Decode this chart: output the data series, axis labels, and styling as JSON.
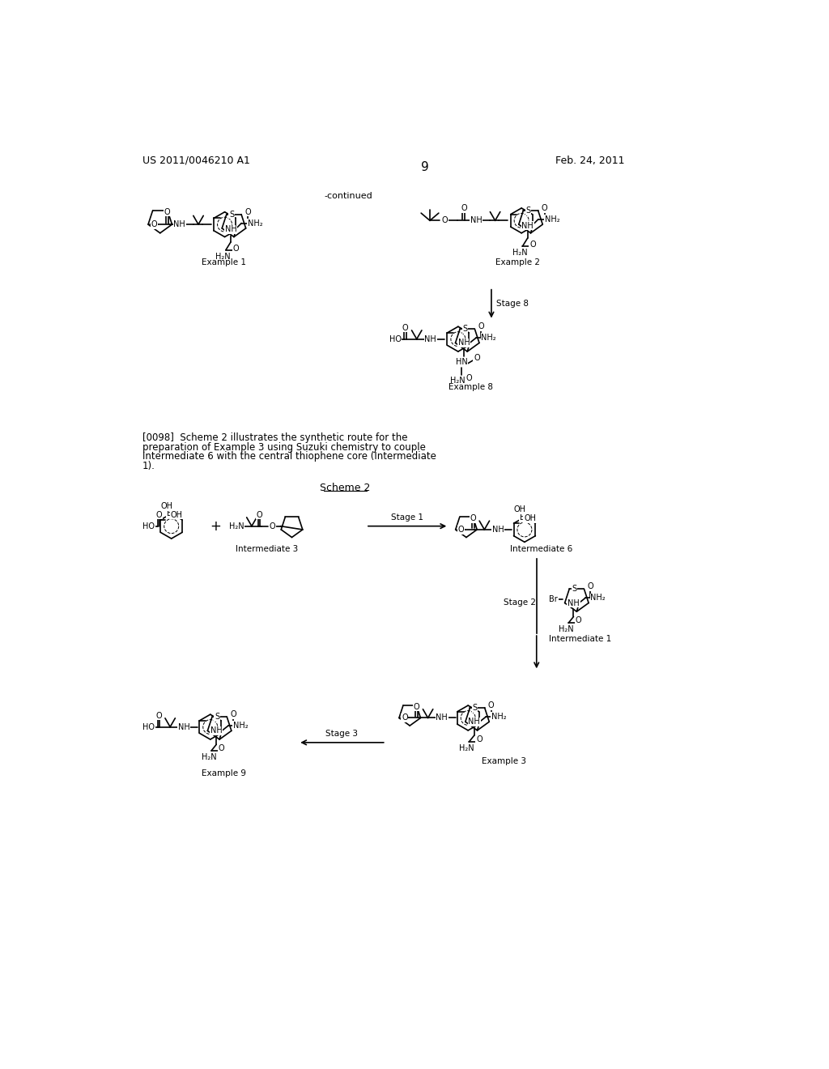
{
  "background_color": "#ffffff",
  "page_number": "9",
  "header_left": "US 2011/0046210 A1",
  "header_right": "Feb. 24, 2011",
  "continued_label": "-continued",
  "figsize": [
    10.24,
    13.2
  ],
  "dpi": 100,
  "paragraph_lines": [
    "[0098]  Scheme 2 illustrates the synthetic route for the",
    "preparation of Example 3 using Suzuki chemistry to couple",
    "Intermediate 6 with the central thiophene core (Intermediate",
    "1)."
  ],
  "scheme2_label": "Scheme 2",
  "text_color": "#000000",
  "line_color": "#000000",
  "font_size_header": 9,
  "font_size_page_number": 11
}
